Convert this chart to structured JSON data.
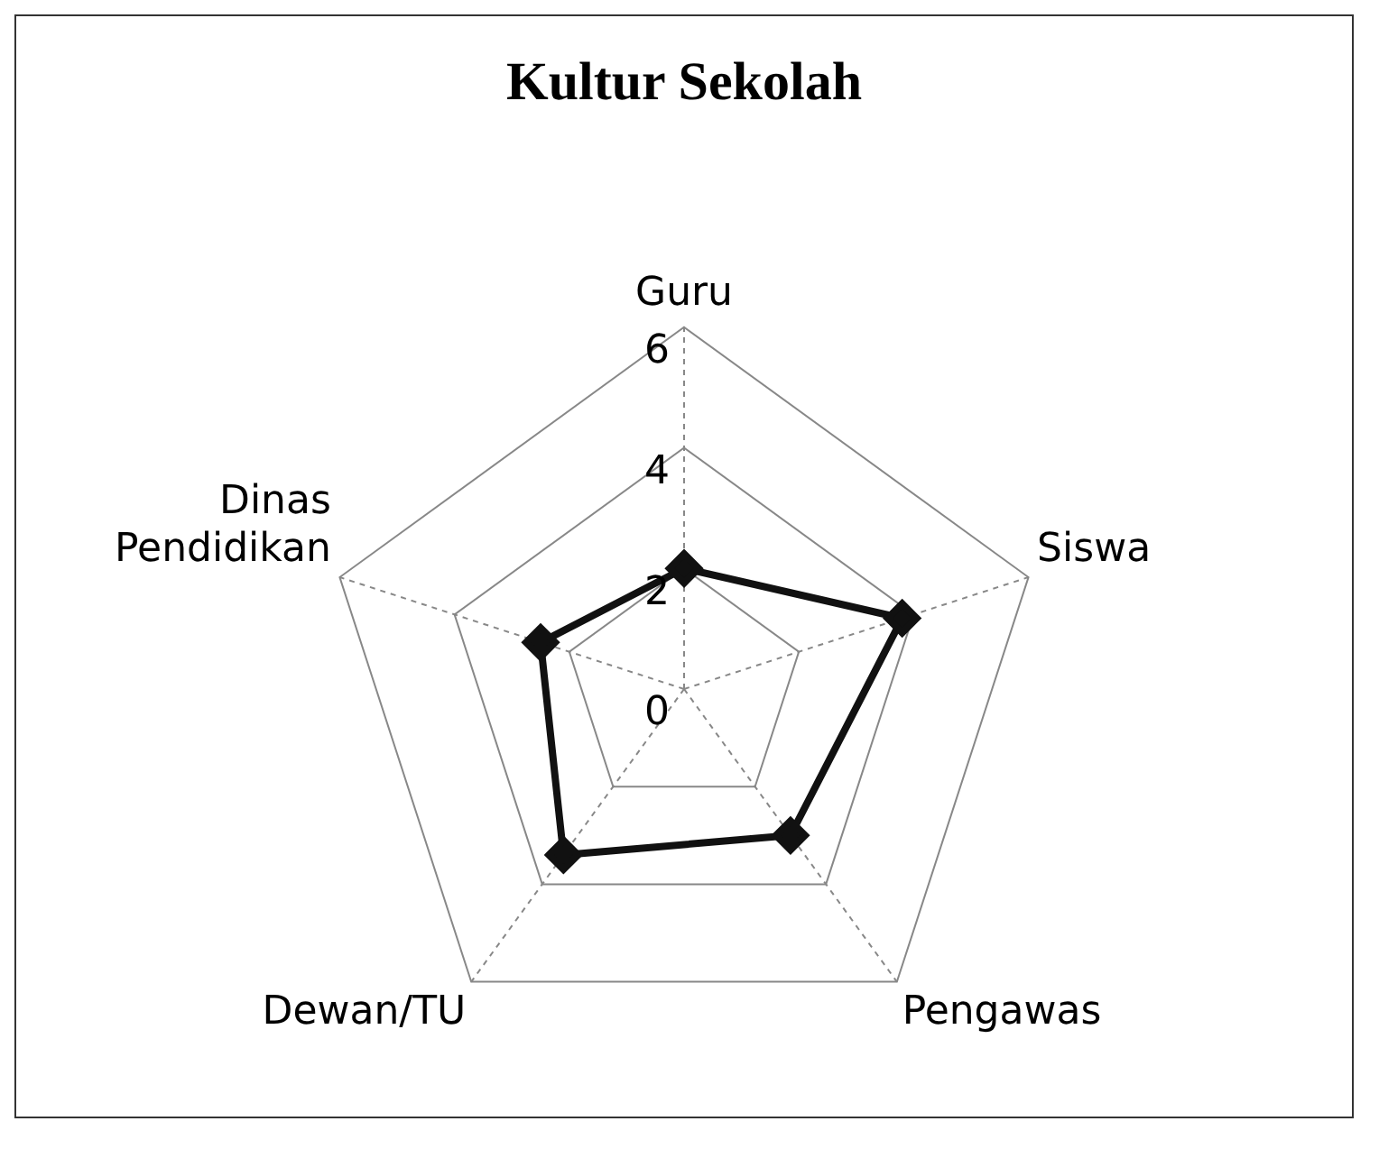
{
  "chart_data": {
    "type": "radar",
    "title": "Kultur Sekolah",
    "categories": [
      "Guru",
      "Siswa",
      "Pengawas",
      "Dewan/TU",
      "Dinas Pendidikan"
    ],
    "series": [
      {
        "color": "#111111",
        "values": [
          2,
          3.8,
          3,
          3.4,
          2.5
        ]
      }
    ],
    "ylim": [
      0,
      6
    ],
    "yticks": [
      0,
      2,
      4,
      6
    ],
    "grid": true,
    "legend": false,
    "marker": "diamond",
    "line_style": "solid"
  }
}
